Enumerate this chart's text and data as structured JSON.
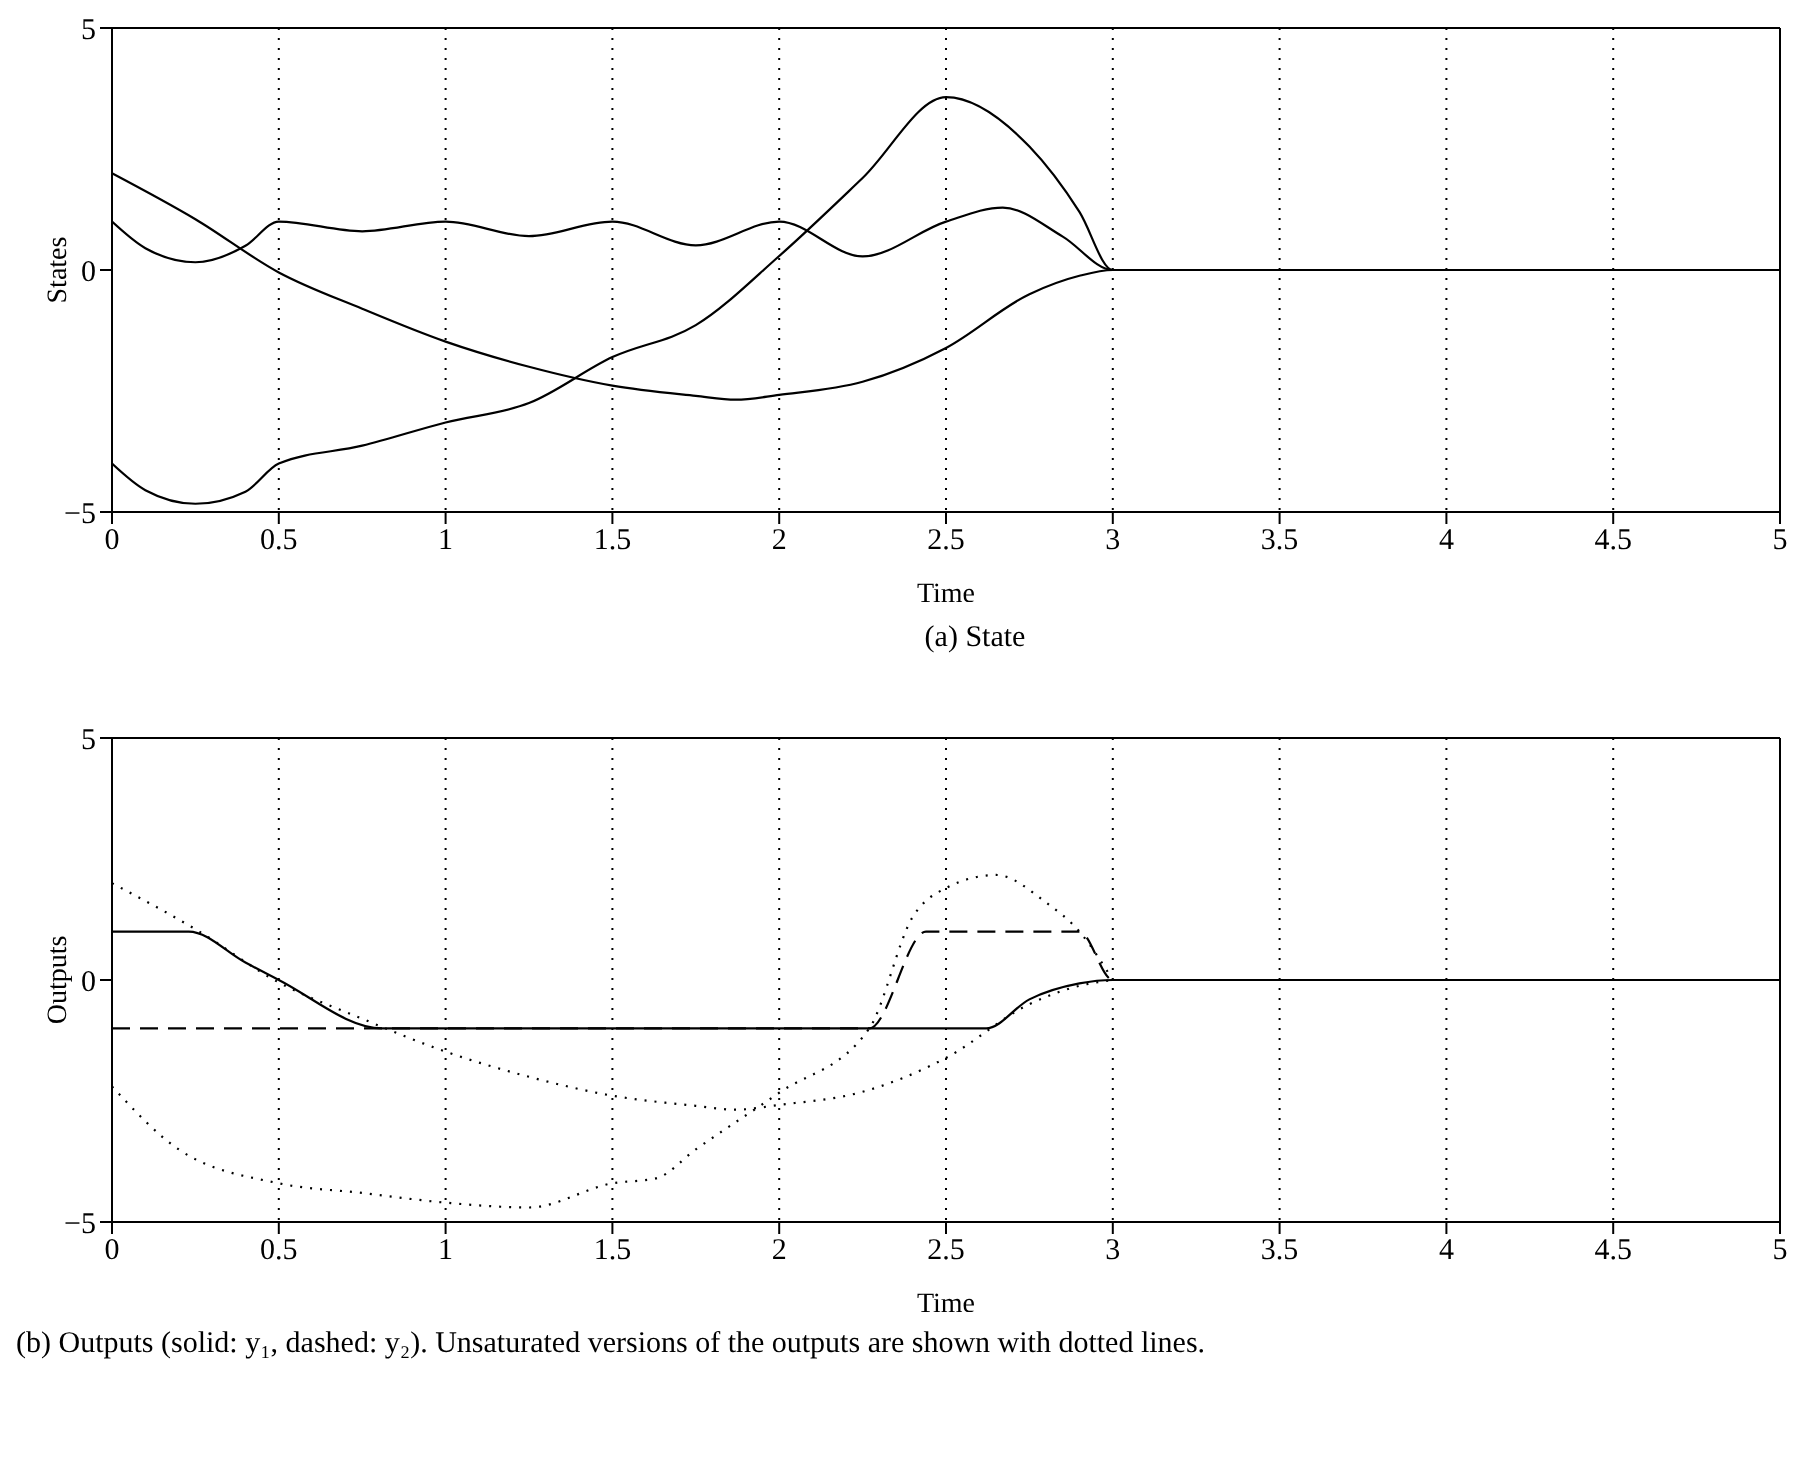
{
  "chart_data": [
    {
      "type": "line",
      "ylabel": "States",
      "xlabel": "Time",
      "annotations": [
        "(a) State"
      ],
      "xlim": [
        0,
        5
      ],
      "xticks": [
        0,
        0.5,
        1,
        1.5,
        2,
        2.5,
        3,
        3.5,
        4,
        4.5,
        5
      ],
      "ylim": [
        -5,
        5
      ],
      "yticks": [
        -5,
        0,
        5
      ],
      "grid": "x",
      "marker": "none",
      "series": [
        {
          "color": "#000000",
          "line_style": "solid",
          "x": [
            0,
            0.25,
            0.5,
            0.75,
            1,
            1.25,
            1.5,
            1.75,
            1.87,
            2,
            2.25,
            2.5,
            2.75,
            2.9,
            3,
            5
          ],
          "values": [
            2,
            1.05,
            -0.05,
            -0.8,
            -1.48,
            -2.0,
            -2.39,
            -2.6,
            -2.68,
            -2.58,
            -2.31,
            -1.61,
            -0.5,
            -0.12,
            0,
            0
          ]
        },
        {
          "color": "#000000",
          "line_style": "solid",
          "x": [
            0,
            0.1,
            0.25,
            0.4,
            0.5,
            0.75,
            1,
            1.25,
            1.5,
            1.75,
            2,
            2.25,
            2.5,
            2.67,
            2.85,
            3,
            5
          ],
          "values": [
            1,
            0.45,
            0.16,
            0.5,
            1,
            0.8,
            1,
            0.7,
            1,
            0.51,
            1,
            0.28,
            1,
            1.29,
            0.69,
            0,
            0
          ]
        },
        {
          "color": "#000000",
          "line_style": "solid",
          "x": [
            0,
            0.1,
            0.25,
            0.4,
            0.5,
            0.75,
            1,
            1.25,
            1.5,
            1.75,
            2,
            2.25,
            2.5,
            2.75,
            2.9,
            3,
            5
          ],
          "values": [
            -4,
            -4.55,
            -4.83,
            -4.58,
            -4,
            -3.63,
            -3.15,
            -2.75,
            -1.8,
            -1.14,
            0.29,
            1.9,
            3.57,
            2.55,
            1.2,
            0,
            0
          ]
        }
      ]
    },
    {
      "type": "line",
      "ylabel": "Outputs",
      "xlabel": "Time",
      "annotations": [
        "(b) Outputs (solid: y₁, dashed: y₂). Unsaturated versions of the outputs are shown with dotted lines."
      ],
      "xlim": [
        0,
        5
      ],
      "xticks": [
        0,
        0.5,
        1,
        1.5,
        2,
        2.5,
        3,
        3.5,
        4,
        4.5,
        5
      ],
      "ylim": [
        -5,
        5
      ],
      "yticks": [
        -5,
        0,
        5
      ],
      "grid": "x",
      "marker": "none",
      "series": [
        {
          "color": "#000000",
          "line_style": "dotted",
          "x": [
            0,
            0.25,
            0.5,
            0.75,
            1,
            1.25,
            1.5,
            1.75,
            1.87,
            2,
            2.25,
            2.5,
            2.75,
            2.9,
            3
          ],
          "values": [
            2,
            1.05,
            -0.05,
            -0.8,
            -1.48,
            -2.0,
            -2.39,
            -2.6,
            -2.68,
            -2.58,
            -2.31,
            -1.61,
            -0.5,
            -0.12,
            0
          ]
        },
        {
          "color": "#000000",
          "line_style": "dotted",
          "x": [
            0,
            0.2,
            0.5,
            0.75,
            1,
            1.25,
            1.5,
            1.63,
            1.75,
            2,
            2.27,
            2.4,
            2.5,
            2.65,
            2.8,
            2.9,
            3
          ],
          "values": [
            -2.2,
            -3.5,
            -4.2,
            -4.4,
            -4.6,
            -4.7,
            -4.2,
            -4.1,
            -3.5,
            -2.33,
            -1,
            1.3,
            1.9,
            2.17,
            1.6,
            1,
            0
          ]
        },
        {
          "color": "#000000",
          "line_style": "solid",
          "x": [
            0,
            0.23,
            0.4,
            0.5,
            0.81,
            2.62,
            2.75,
            2.9,
            3,
            5
          ],
          "values": [
            1,
            1,
            0.36,
            0,
            -1,
            -1,
            -0.4,
            -0.07,
            0,
            0
          ]
        },
        {
          "color": "#000000",
          "line_style": "dashed",
          "x": [
            0,
            0.81,
            2.27,
            2.44,
            2.9,
            3,
            5
          ],
          "values": [
            -1,
            -1,
            -1,
            1,
            1,
            0,
            0
          ]
        }
      ]
    }
  ]
}
